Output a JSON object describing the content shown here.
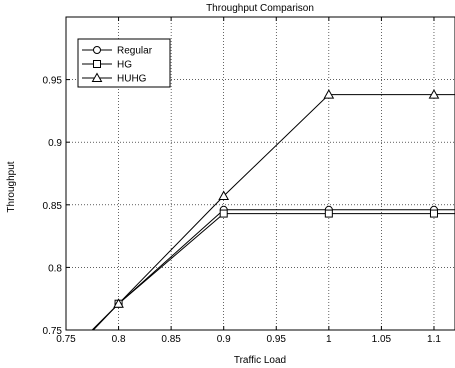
{
  "chart_data": {
    "type": "line",
    "title": "Throughput Comparison",
    "xlabel": "Traffic Load",
    "ylabel": "Throughput",
    "xlim": [
      0.75,
      1.12
    ],
    "ylim": [
      0.75,
      1.0
    ],
    "x_ticks": [
      0.75,
      0.8,
      0.85,
      0.9,
      0.95,
      1,
      1.05,
      1.1
    ],
    "x_tick_labels": [
      "0.75",
      "0.8",
      "0.85",
      "0.9",
      "0.95",
      "1",
      "1.05",
      "1.1"
    ],
    "y_ticks": [
      0.75,
      0.8,
      0.85,
      0.9,
      0.95
    ],
    "y_tick_labels": [
      "0.75",
      "0.8",
      "0.85",
      "0.9",
      "0.95"
    ],
    "grid": true,
    "legend_position": "top-left",
    "x": [
      0.8,
      0.9,
      1.0,
      1.1
    ],
    "series": [
      {
        "name": "Regular",
        "marker": "circle",
        "values": [
          0.771,
          0.846,
          0.846,
          0.846
        ],
        "line_start": [
          0.775,
          0.75
        ],
        "line_end": [
          1.12,
          0.846
        ]
      },
      {
        "name": "HG",
        "marker": "square",
        "values": [
          0.771,
          0.843,
          0.843,
          0.843
        ],
        "line_start": [
          0.775,
          0.75
        ],
        "line_end": [
          1.12,
          0.843
        ]
      },
      {
        "name": "HUHG",
        "marker": "triangle",
        "values": [
          0.771,
          0.857,
          0.938,
          0.938
        ],
        "line_start": [
          0.776,
          0.75
        ],
        "line_end": [
          1.12,
          0.938
        ]
      }
    ]
  }
}
